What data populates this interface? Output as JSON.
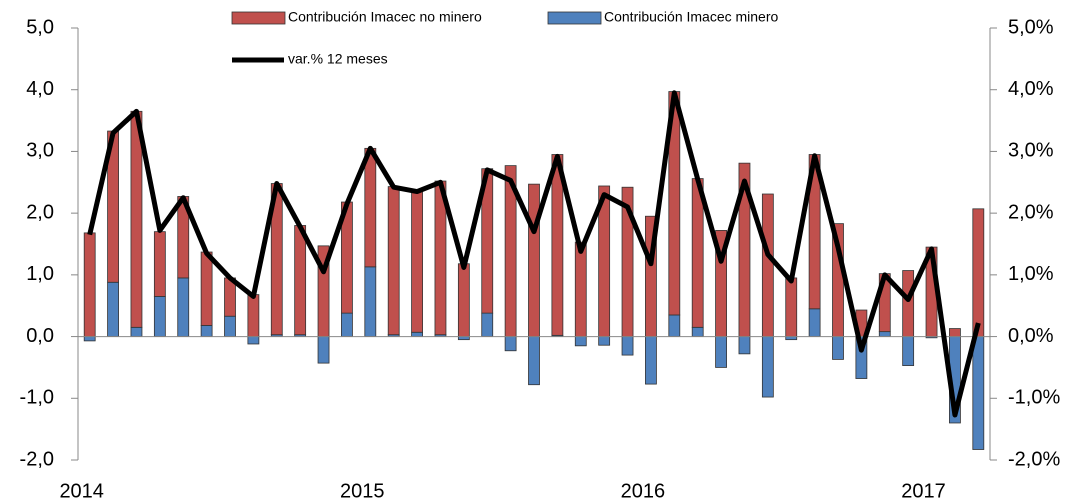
{
  "chart_data": {
    "type": "bar-line",
    "categories": [
      "2014",
      null,
      null,
      null,
      null,
      null,
      null,
      null,
      null,
      null,
      null,
      null,
      "2015",
      null,
      null,
      null,
      null,
      null,
      null,
      null,
      null,
      null,
      null,
      null,
      "2016",
      null,
      null,
      null,
      null,
      null,
      null,
      null,
      null,
      null,
      null,
      null,
      "2017",
      null,
      null
    ],
    "series": [
      {
        "name": "Contribución Imacec no minero",
        "color": "#c0504d",
        "kind": "bar",
        "values": [
          1.68,
          2.45,
          3.5,
          1.05,
          1.32,
          1.19,
          0.62,
          0.68,
          2.45,
          1.77,
          1.47,
          1.8,
          1.92,
          2.4,
          2.28,
          2.49,
          1.18,
          2.34,
          2.77,
          2.47,
          2.93,
          1.53,
          2.44,
          2.42,
          1.95,
          3.62,
          2.41,
          1.72,
          2.81,
          2.31,
          0.95,
          2.5,
          1.83,
          0.43,
          0.94,
          1.07,
          1.45,
          0.13,
          2.07
        ]
      },
      {
        "name": "Contribución Imacec minero",
        "color": "#4f81bd",
        "kind": "bar",
        "values": [
          -0.07,
          0.88,
          0.15,
          0.65,
          0.95,
          0.18,
          0.33,
          -0.12,
          0.03,
          0.03,
          -0.43,
          0.38,
          1.13,
          0.03,
          0.07,
          0.03,
          -0.05,
          0.38,
          -0.23,
          -0.78,
          0.02,
          -0.15,
          -0.14,
          -0.3,
          -0.77,
          0.35,
          0.15,
          -0.5,
          -0.28,
          -0.98,
          -0.05,
          0.45,
          -0.37,
          -0.68,
          0.08,
          -0.47,
          -0.02,
          -1.4,
          -1.83
        ]
      },
      {
        "name": "var.% 12 meses",
        "color": "#000000",
        "kind": "line",
        "axis": "y2",
        "values": [
          1.65,
          3.3,
          3.65,
          1.72,
          2.25,
          1.35,
          0.95,
          0.65,
          2.48,
          1.78,
          1.05,
          2.15,
          3.05,
          2.42,
          2.35,
          2.5,
          1.12,
          2.7,
          2.53,
          1.7,
          2.92,
          1.38,
          2.3,
          2.1,
          1.18,
          3.95,
          2.55,
          1.22,
          2.52,
          1.33,
          0.9,
          2.93,
          1.45,
          -0.22,
          1.0,
          0.6,
          1.42,
          -1.27,
          0.22
        ]
      }
    ],
    "ylim": [
      -2,
      5
    ],
    "yticks": [
      {
        "value": -2,
        "label": "-2,0"
      },
      {
        "value": -1,
        "label": "-1,0"
      },
      {
        "value": 0,
        "label": "0,0"
      },
      {
        "value": 1,
        "label": "1,0"
      },
      {
        "value": 2,
        "label": "2,0"
      },
      {
        "value": 3,
        "label": "3,0"
      },
      {
        "value": 4,
        "label": "4,0"
      },
      {
        "value": 5,
        "label": "5,0"
      }
    ],
    "y2lim": [
      -2,
      5
    ],
    "y2ticks": [
      {
        "value": -2,
        "label": "-2,0%"
      },
      {
        "value": -1,
        "label": "-1,0%"
      },
      {
        "value": 0,
        "label": "0,0%"
      },
      {
        "value": 1,
        "label": "1,0%"
      },
      {
        "value": 2,
        "label": "2,0%"
      },
      {
        "value": 3,
        "label": "3,0%"
      },
      {
        "value": 4,
        "label": "4,0%"
      },
      {
        "value": 5,
        "label": "5,0%"
      }
    ],
    "grid": false
  }
}
